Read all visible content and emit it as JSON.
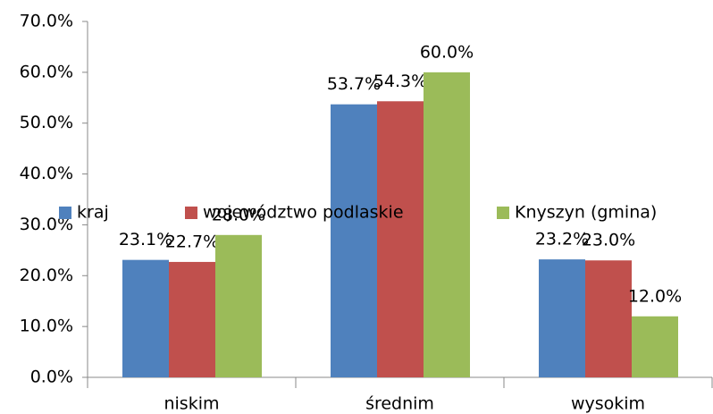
{
  "chart_data": {
    "type": "bar",
    "categories": [
      "niskim",
      "średnim",
      "wysokim"
    ],
    "series": [
      {
        "name": "kraj",
        "color": "#4f81bd",
        "values": [
          23.1,
          53.7,
          23.2
        ],
        "value_labels": [
          "23.1%",
          "53.7%",
          "23.2%"
        ]
      },
      {
        "name": "województwo podlaskie",
        "color": "#c0504d",
        "values": [
          22.7,
          54.3,
          23.0
        ],
        "value_labels": [
          "22.7%",
          "54.3%",
          "23.0%"
        ]
      },
      {
        "name": "Knyszyn (gmina)",
        "color": "#9bbb59",
        "values": [
          28.0,
          60.0,
          12.0
        ],
        "value_labels": [
          "28.0%",
          "60.0%",
          "12.0%"
        ]
      }
    ],
    "ylim": [
      0,
      70
    ],
    "yticks": [
      {
        "value": 0,
        "label": "0.0%"
      },
      {
        "value": 10,
        "label": "10.0%"
      },
      {
        "value": 20,
        "label": "20.0%"
      },
      {
        "value": 30,
        "label": "30.0%"
      },
      {
        "value": 40,
        "label": "40.0%"
      },
      {
        "value": 50,
        "label": "50.0%"
      },
      {
        "value": 60,
        "label": "60.0%"
      },
      {
        "value": 70,
        "label": "70.0%"
      }
    ],
    "legend": "middle"
  }
}
